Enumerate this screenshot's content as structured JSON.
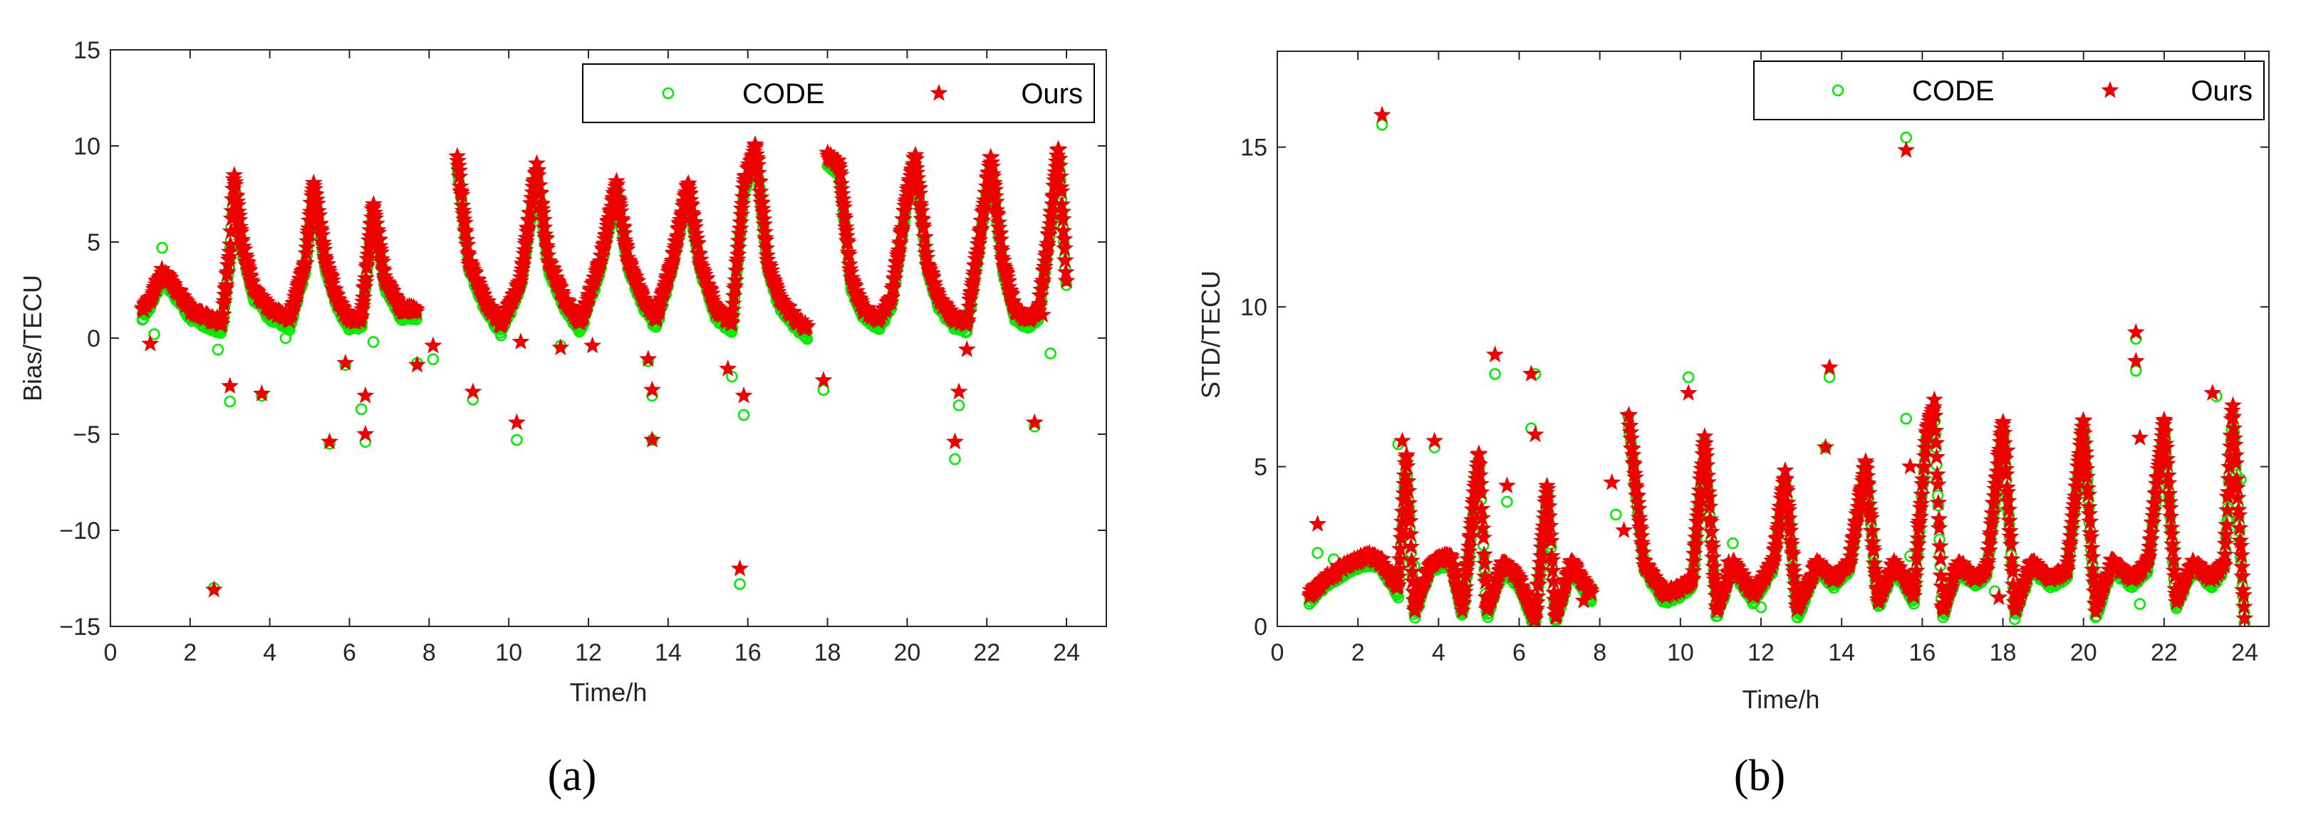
{
  "chart_data": [
    {
      "type": "scatter",
      "panel_label": "(a)",
      "xlabel": "Time/h",
      "ylabel": "Bias/TECU",
      "xlim": [
        0,
        25
      ],
      "ylim": [
        -15,
        15
      ],
      "xticks": [
        0,
        2,
        4,
        6,
        8,
        10,
        12,
        14,
        16,
        18,
        20,
        22,
        24
      ],
      "yticks": [
        -15,
        -10,
        -5,
        0,
        5,
        10,
        15
      ],
      "xtick_labels": [
        "0",
        "2",
        "4",
        "6",
        "8",
        "10",
        "12",
        "14",
        "16",
        "18",
        "20",
        "22",
        "24"
      ],
      "ytick_labels": [
        "−15",
        "−10",
        "−5",
        "0",
        "5",
        "10",
        "15"
      ],
      "legend": {
        "position": "top-right",
        "columns": 2
      },
      "series": [
        {
          "name": "CODE",
          "marker": "circle-open",
          "color": "#00ee00"
        },
        {
          "name": "Ours",
          "marker": "star-filled",
          "color": "#ee0000"
        }
      ],
      "trend": {
        "baseline": [
          [
            0.8,
            1.5
          ],
          [
            1.0,
            2.0
          ],
          [
            1.3,
            3.5
          ],
          [
            1.5,
            3.0
          ],
          [
            2.0,
            1.5
          ],
          [
            2.5,
            1.0
          ],
          [
            2.8,
            0.8
          ],
          [
            3.0,
            4.5
          ],
          [
            3.1,
            8.5
          ],
          [
            3.3,
            5.0
          ],
          [
            3.6,
            2.5
          ],
          [
            4.0,
            1.5
          ],
          [
            4.5,
            1.0
          ],
          [
            4.9,
            4.0
          ],
          [
            5.1,
            8.2
          ],
          [
            5.4,
            4.0
          ],
          [
            5.7,
            2.0
          ],
          [
            6.0,
            1.0
          ],
          [
            6.3,
            1.0
          ],
          [
            6.6,
            7.0
          ],
          [
            6.9,
            3.0
          ],
          [
            7.3,
            1.5
          ],
          [
            7.7,
            1.5
          ],
          [
            8.0,
            null
          ],
          [
            8.6,
            null
          ],
          [
            8.7,
            9.5
          ],
          [
            9.0,
            4.0
          ],
          [
            9.4,
            2.0
          ],
          [
            9.8,
            0.7
          ],
          [
            10.3,
            3.0
          ],
          [
            10.7,
            9.0
          ],
          [
            11.0,
            4.0
          ],
          [
            11.4,
            2.0
          ],
          [
            11.8,
            0.8
          ],
          [
            12.3,
            4.0
          ],
          [
            12.7,
            8.0
          ],
          [
            13.0,
            4.0
          ],
          [
            13.4,
            2.0
          ],
          [
            13.7,
            1.0
          ],
          [
            14.1,
            4.0
          ],
          [
            14.5,
            8.0
          ],
          [
            14.8,
            4.0
          ],
          [
            15.2,
            1.5
          ],
          [
            15.6,
            0.8
          ],
          [
            15.9,
            8.0
          ],
          [
            16.2,
            10.0
          ],
          [
            16.5,
            4.0
          ],
          [
            16.8,
            2.0
          ],
          [
            17.2,
            1.0
          ],
          [
            17.5,
            0.5
          ],
          [
            17.8,
            null
          ],
          [
            18.0,
            9.5
          ],
          [
            18.3,
            9.0
          ],
          [
            18.6,
            3.0
          ],
          [
            18.9,
            1.5
          ],
          [
            19.3,
            1.0
          ],
          [
            19.6,
            2.0
          ],
          [
            20.0,
            7.5
          ],
          [
            20.2,
            9.5
          ],
          [
            20.5,
            4.0
          ],
          [
            20.8,
            2.0
          ],
          [
            21.2,
            1.0
          ],
          [
            21.5,
            0.8
          ],
          [
            21.8,
            5.0
          ],
          [
            22.1,
            9.5
          ],
          [
            22.4,
            4.0
          ],
          [
            22.7,
            1.5
          ],
          [
            23.0,
            1.0
          ],
          [
            23.3,
            1.5
          ],
          [
            23.6,
            6.0
          ],
          [
            23.8,
            10.0
          ],
          [
            24.0,
            3.0
          ]
        ],
        "code_offset": -0.4
      },
      "outliers": {
        "CODE": [
          [
            1.1,
            0.2
          ],
          [
            1.3,
            4.7
          ],
          [
            2.6,
            -13.0
          ],
          [
            2.7,
            -0.6
          ],
          [
            3.0,
            -3.3
          ],
          [
            3.8,
            -3.0
          ],
          [
            4.4,
            0.0
          ],
          [
            5.5,
            -5.5
          ],
          [
            5.9,
            -1.4
          ],
          [
            6.3,
            -3.7
          ],
          [
            6.4,
            -5.4
          ],
          [
            6.6,
            -0.2
          ],
          [
            7.7,
            -1.3
          ],
          [
            8.1,
            -1.1
          ],
          [
            9.1,
            -3.2
          ],
          [
            10.2,
            -5.3
          ],
          [
            11.3,
            -0.4
          ],
          [
            13.5,
            -1.2
          ],
          [
            13.6,
            -3.0
          ],
          [
            13.6,
            -5.3
          ],
          [
            15.6,
            -2.0
          ],
          [
            15.8,
            -12.8
          ],
          [
            15.9,
            -4.0
          ],
          [
            17.9,
            -2.7
          ],
          [
            21.2,
            -6.3
          ],
          [
            21.3,
            -3.5
          ],
          [
            23.2,
            -4.6
          ],
          [
            23.6,
            -0.8
          ]
        ],
        "Ours": [
          [
            1.0,
            -0.3
          ],
          [
            2.6,
            -13.1
          ],
          [
            3.0,
            -2.5
          ],
          [
            3.8,
            -2.9
          ],
          [
            5.5,
            -5.4
          ],
          [
            5.9,
            -1.3
          ],
          [
            6.4,
            -5.0
          ],
          [
            6.4,
            -3.0
          ],
          [
            7.7,
            -1.4
          ],
          [
            8.1,
            -0.4
          ],
          [
            9.1,
            -2.8
          ],
          [
            10.2,
            -4.4
          ],
          [
            10.3,
            -0.2
          ],
          [
            11.3,
            -0.5
          ],
          [
            12.1,
            -0.4
          ],
          [
            13.5,
            -1.1
          ],
          [
            13.6,
            -2.7
          ],
          [
            13.6,
            -5.3
          ],
          [
            15.5,
            -1.6
          ],
          [
            15.8,
            -12.0
          ],
          [
            15.9,
            -3.0
          ],
          [
            17.9,
            -2.2
          ],
          [
            21.2,
            -5.4
          ],
          [
            21.3,
            -2.8
          ],
          [
            21.5,
            -0.6
          ],
          [
            23.2,
            -4.4
          ],
          [
            23.4,
            1.2
          ]
        ]
      }
    },
    {
      "type": "scatter",
      "panel_label": "(b)",
      "xlabel": "Time/h",
      "ylabel": "STD/TECU",
      "xlim": [
        0,
        24.6
      ],
      "ylim": [
        0,
        18
      ],
      "xticks": [
        0,
        2,
        4,
        6,
        8,
        10,
        12,
        14,
        16,
        18,
        20,
        22,
        24
      ],
      "yticks": [
        0,
        5,
        10,
        15
      ],
      "xtick_labels": [
        "0",
        "2",
        "4",
        "6",
        "8",
        "10",
        "12",
        "14",
        "16",
        "18",
        "20",
        "22",
        "24"
      ],
      "ytick_labels": [
        "0",
        "5",
        "10",
        "15"
      ],
      "legend": {
        "position": "top-right",
        "columns": 2
      },
      "series": [
        {
          "name": "CODE",
          "marker": "circle-open",
          "color": "#00ee00"
        },
        {
          "name": "Ours",
          "marker": "star-filled",
          "color": "#ee0000"
        }
      ],
      "trend": {
        "baseline": [
          [
            0.8,
            1.0
          ],
          [
            1.2,
            1.5
          ],
          [
            1.8,
            2.0
          ],
          [
            2.3,
            2.2
          ],
          [
            2.6,
            2.0
          ],
          [
            3.0,
            1.2
          ],
          [
            3.2,
            5.5
          ],
          [
            3.4,
            0.5
          ],
          [
            3.8,
            2.0
          ],
          [
            4.3,
            2.2
          ],
          [
            4.6,
            0.5
          ],
          [
            5.0,
            5.5
          ],
          [
            5.2,
            0.5
          ],
          [
            5.6,
            2.0
          ],
          [
            6.0,
            1.5
          ],
          [
            6.4,
            0.2
          ],
          [
            6.7,
            4.5
          ],
          [
            6.9,
            0.3
          ],
          [
            7.3,
            2.0
          ],
          [
            7.8,
            1.0
          ],
          [
            8.0,
            null
          ],
          [
            8.5,
            null
          ],
          [
            8.7,
            6.8
          ],
          [
            9.1,
            2.0
          ],
          [
            9.6,
            1.0
          ],
          [
            10.0,
            1.2
          ],
          [
            10.3,
            1.5
          ],
          [
            10.6,
            6.0
          ],
          [
            10.9,
            0.5
          ],
          [
            11.3,
            2.0
          ],
          [
            11.8,
            1.0
          ],
          [
            12.3,
            2.0
          ],
          [
            12.6,
            4.8
          ],
          [
            12.9,
            0.5
          ],
          [
            13.4,
            2.0
          ],
          [
            13.8,
            1.5
          ],
          [
            14.2,
            2.0
          ],
          [
            14.6,
            5.2
          ],
          [
            14.9,
            0.8
          ],
          [
            15.3,
            2.0
          ],
          [
            15.8,
            1.0
          ],
          [
            16.1,
            6.0
          ],
          [
            16.3,
            7.0
          ],
          [
            16.5,
            0.5
          ],
          [
            16.9,
            2.0
          ],
          [
            17.3,
            1.5
          ],
          [
            17.6,
            1.8
          ],
          [
            18.0,
            6.5
          ],
          [
            18.3,
            0.5
          ],
          [
            18.7,
            2.0
          ],
          [
            19.2,
            1.5
          ],
          [
            19.6,
            1.8
          ],
          [
            20.0,
            6.5
          ],
          [
            20.3,
            0.5
          ],
          [
            20.7,
            2.0
          ],
          [
            21.2,
            1.5
          ],
          [
            21.6,
            2.0
          ],
          [
            22.0,
            6.5
          ],
          [
            22.3,
            0.8
          ],
          [
            22.7,
            2.0
          ],
          [
            23.2,
            1.5
          ],
          [
            23.5,
            2.0
          ],
          [
            23.7,
            7.0
          ],
          [
            24.0,
            0.2
          ]
        ],
        "code_offset": -0.2
      },
      "outliers": {
        "CODE": [
          [
            1.0,
            2.3
          ],
          [
            1.4,
            2.1
          ],
          [
            2.6,
            15.7
          ],
          [
            3.0,
            5.7
          ],
          [
            3.4,
            1.9
          ],
          [
            3.9,
            5.6
          ],
          [
            5.4,
            7.9
          ],
          [
            5.7,
            3.9
          ],
          [
            6.3,
            6.2
          ],
          [
            6.4,
            7.9
          ],
          [
            7.8,
            1.2
          ],
          [
            8.4,
            3.5
          ],
          [
            10.2,
            7.8
          ],
          [
            11.3,
            2.6
          ],
          [
            12.0,
            0.6
          ],
          [
            13.6,
            5.6
          ],
          [
            13.7,
            7.8
          ],
          [
            15.6,
            15.3
          ],
          [
            15.6,
            6.5
          ],
          [
            15.7,
            2.2
          ],
          [
            17.8,
            1.1
          ],
          [
            18.0,
            3.8
          ],
          [
            20.1,
            4.6
          ],
          [
            21.3,
            9.0
          ],
          [
            21.3,
            8.0
          ],
          [
            21.4,
            0.7
          ],
          [
            23.3,
            7.2
          ],
          [
            23.6,
            3.3
          ],
          [
            23.9,
            4.6
          ]
        ],
        "Ours": [
          [
            1.0,
            3.2
          ],
          [
            2.6,
            16.0
          ],
          [
            3.1,
            5.8
          ],
          [
            3.9,
            5.8
          ],
          [
            5.4,
            8.5
          ],
          [
            5.7,
            4.4
          ],
          [
            6.3,
            7.9
          ],
          [
            6.4,
            6.0
          ],
          [
            7.6,
            0.8
          ],
          [
            8.3,
            4.5
          ],
          [
            8.6,
            3.0
          ],
          [
            10.2,
            7.3
          ],
          [
            11.2,
            2.0
          ],
          [
            12.1,
            1.5
          ],
          [
            13.7,
            8.1
          ],
          [
            13.6,
            5.6
          ],
          [
            15.6,
            14.9
          ],
          [
            15.7,
            5.0
          ],
          [
            15.9,
            3.2
          ],
          [
            17.9,
            0.9
          ],
          [
            18.1,
            5.5
          ],
          [
            20.0,
            5.0
          ],
          [
            21.3,
            9.2
          ],
          [
            21.3,
            8.3
          ],
          [
            21.4,
            5.9
          ],
          [
            23.2,
            7.3
          ],
          [
            23.7,
            4.4
          ]
        ]
      }
    }
  ]
}
